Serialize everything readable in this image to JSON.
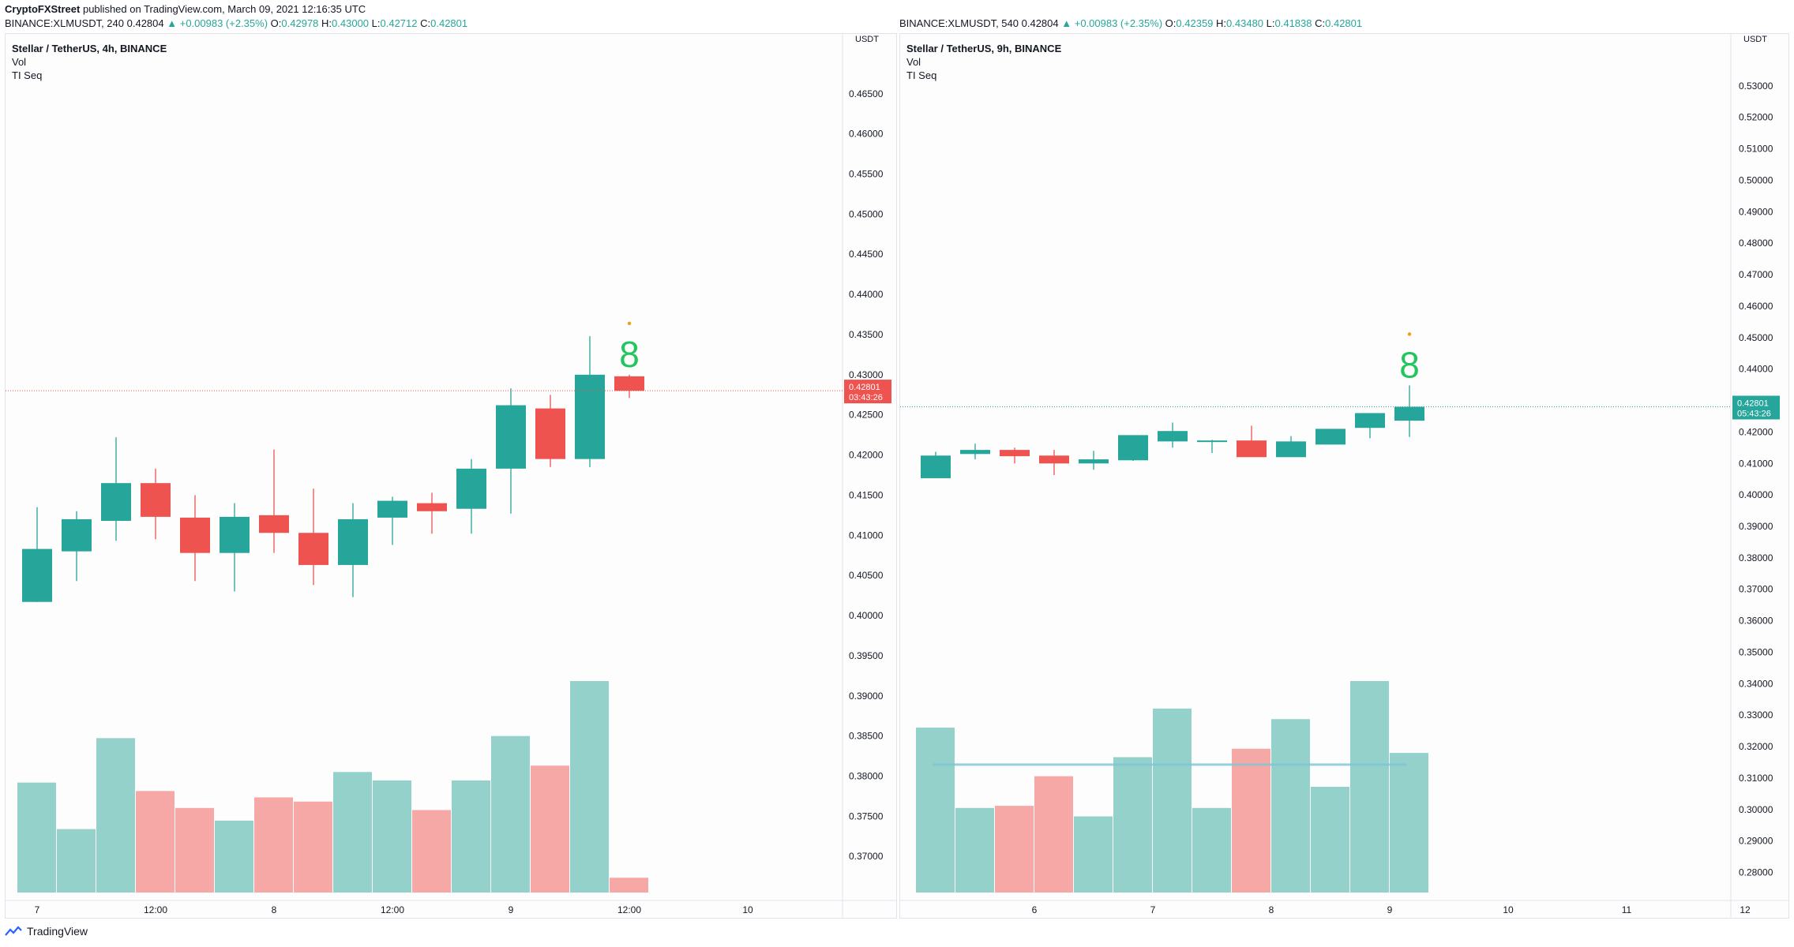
{
  "header": {
    "publisher": "CryptoFXStreet",
    "published_text": " published on TradingView.com, March 09, 2021 12:16:35 UTC"
  },
  "footer": {
    "brand": "TradingView"
  },
  "colors": {
    "up": "#26a69a",
    "down": "#ef5350",
    "up_vol": "#93d1ca",
    "down_vol": "#f6a8a6",
    "seq": "#22c55e"
  },
  "chart_data": [
    {
      "type": "candlestick",
      "symbol_line": "BINANCE:XLMUSDT, 240",
      "quote": {
        "last": "0.42804",
        "change": "▲ +0.00983 (+2.35%)",
        "o_label": "O:",
        "o": "0.42978",
        "h_label": "H:",
        "h": "0.43000",
        "l_label": "L:",
        "l": "0.42712",
        "c_label": "C:",
        "c": "0.42801"
      },
      "title": "Stellar / TetherUS, 4h, BINANCE",
      "indicators": [
        "Vol",
        "TI Seq"
      ],
      "currency_label": "USDT",
      "price_ticks": [
        "0.46500",
        "0.46000",
        "0.45500",
        "0.45000",
        "0.44500",
        "0.44000",
        "0.43500",
        "0.43000",
        "0.42500",
        "0.42000",
        "0.41500",
        "0.41000",
        "0.40500",
        "0.40000",
        "0.39500",
        "0.39000",
        "0.38500",
        "0.38000",
        "0.37500",
        "0.37000"
      ],
      "ylim": [
        0.3655,
        0.4695
      ],
      "x_tick_labels": [
        {
          "label": "7",
          "at": 0
        },
        {
          "label": "12:00",
          "at": 3
        },
        {
          "label": "8",
          "at": 6
        },
        {
          "label": "12:00",
          "at": 9
        },
        {
          "label": "9",
          "at": 12
        },
        {
          "label": "12:00",
          "at": 15
        },
        {
          "label": "10",
          "at": 18
        }
      ],
      "candles": [
        {
          "o": 0.4017,
          "h": 0.4135,
          "l": 0.4017,
          "c": 0.4083
        },
        {
          "o": 0.408,
          "h": 0.413,
          "l": 0.4043,
          "c": 0.412
        },
        {
          "o": 0.4118,
          "h": 0.4222,
          "l": 0.4093,
          "c": 0.4165
        },
        {
          "o": 0.4165,
          "h": 0.4183,
          "l": 0.4095,
          "c": 0.4123
        },
        {
          "o": 0.4122,
          "h": 0.415,
          "l": 0.4043,
          "c": 0.4078
        },
        {
          "o": 0.4078,
          "h": 0.414,
          "l": 0.403,
          "c": 0.4123
        },
        {
          "o": 0.4125,
          "h": 0.4207,
          "l": 0.4078,
          "c": 0.4103
        },
        {
          "o": 0.4103,
          "h": 0.4158,
          "l": 0.4038,
          "c": 0.4063
        },
        {
          "o": 0.4063,
          "h": 0.414,
          "l": 0.4023,
          "c": 0.412
        },
        {
          "o": 0.4122,
          "h": 0.4148,
          "l": 0.4088,
          "c": 0.4143
        },
        {
          "o": 0.414,
          "h": 0.4153,
          "l": 0.4102,
          "c": 0.413
        },
        {
          "o": 0.4133,
          "h": 0.4195,
          "l": 0.4102,
          "c": 0.4183
        },
        {
          "o": 0.4183,
          "h": 0.4283,
          "l": 0.4127,
          "c": 0.4262
        },
        {
          "o": 0.4258,
          "h": 0.4275,
          "l": 0.4185,
          "c": 0.4195
        },
        {
          "o": 0.4195,
          "h": 0.4348,
          "l": 0.4185,
          "c": 0.43
        },
        {
          "o": 0.4298,
          "h": 0.43,
          "l": 0.4271,
          "c": 0.428
        }
      ],
      "volume": [
        0.52,
        0.3,
        0.73,
        0.48,
        0.4,
        0.34,
        0.45,
        0.43,
        0.57,
        0.53,
        0.39,
        0.53,
        0.74,
        0.6,
        1.0,
        0.07
      ],
      "volume_ceiling": 0.3899,
      "seq_label": {
        "text": "8",
        "candle": 15
      },
      "last_price": {
        "value": "0.42801",
        "countdown": "03:43:26",
        "y": 0.42801,
        "color": "#ef5350"
      }
    },
    {
      "type": "candlestick",
      "symbol_line": "BINANCE:XLMUSDT, 540",
      "quote": {
        "last": "0.42804",
        "change": "▲ +0.00983 (+2.35%)",
        "o_label": "O:",
        "o": "0.42359",
        "h_label": "H:",
        "h": "0.43480",
        "l_label": "L:",
        "l": "0.41838",
        "c_label": "C:",
        "c": "0.42801"
      },
      "title": "Stellar / TetherUS, 9h, BINANCE",
      "indicators": [
        "Vol",
        "TI Seq"
      ],
      "currency_label": "USDT",
      "price_ticks": [
        "0.53000",
        "0.52000",
        "0.51000",
        "0.50000",
        "0.49000",
        "0.48000",
        "0.47000",
        "0.46000",
        "0.45000",
        "0.44000",
        "0.43000",
        "0.42000",
        "0.41000",
        "0.40000",
        "0.39000",
        "0.38000",
        "0.37000",
        "0.36000",
        "0.35000",
        "0.34000",
        "0.33000",
        "0.32000",
        "0.31000",
        "0.30000",
        "0.29000",
        "0.28000"
      ],
      "ylim": [
        0.2736,
        0.539
      ],
      "x_tick_labels": [
        {
          "label": "6",
          "at": 2.5
        },
        {
          "label": "7",
          "at": 5.5
        },
        {
          "label": "8",
          "at": 8.5
        },
        {
          "label": "9",
          "at": 11.5
        },
        {
          "label": "10",
          "at": 14.5
        },
        {
          "label": "11",
          "at": 17.5
        },
        {
          "label": "12",
          "at": 20.5
        }
      ],
      "candles": [
        {
          "o": 0.4053,
          "h": 0.4137,
          "l": 0.4053,
          "c": 0.4125
        },
        {
          "o": 0.413,
          "h": 0.4163,
          "l": 0.4113,
          "c": 0.4143
        },
        {
          "o": 0.4143,
          "h": 0.415,
          "l": 0.41,
          "c": 0.4123
        },
        {
          "o": 0.4125,
          "h": 0.4143,
          "l": 0.4063,
          "c": 0.41
        },
        {
          "o": 0.41,
          "h": 0.414,
          "l": 0.408,
          "c": 0.4113
        },
        {
          "o": 0.411,
          "h": 0.4187,
          "l": 0.4108,
          "c": 0.419
        },
        {
          "o": 0.417,
          "h": 0.423,
          "l": 0.415,
          "c": 0.4203
        },
        {
          "o": 0.417,
          "h": 0.4175,
          "l": 0.4133,
          "c": 0.4173
        },
        {
          "o": 0.4173,
          "h": 0.422,
          "l": 0.413,
          "c": 0.412
        },
        {
          "o": 0.412,
          "h": 0.4187,
          "l": 0.413,
          "c": 0.417
        },
        {
          "o": 0.416,
          "h": 0.421,
          "l": 0.416,
          "c": 0.421
        },
        {
          "o": 0.4213,
          "h": 0.4257,
          "l": 0.418,
          "c": 0.426
        },
        {
          "o": 0.4236,
          "h": 0.4348,
          "l": 0.4184,
          "c": 0.428
        }
      ],
      "volume": [
        0.78,
        0.4,
        0.41,
        0.55,
        0.36,
        0.64,
        0.87,
        0.4,
        0.68,
        0.82,
        0.5,
        1.0,
        0.66
      ],
      "volume_ceiling": 0.3399,
      "volume_ma": 0.605,
      "seq_label": {
        "text": "8",
        "candle": 12
      },
      "last_price": {
        "value": "0.42801",
        "countdown": "05:43:26",
        "y": 0.42801,
        "color": "#26a69a"
      }
    }
  ]
}
